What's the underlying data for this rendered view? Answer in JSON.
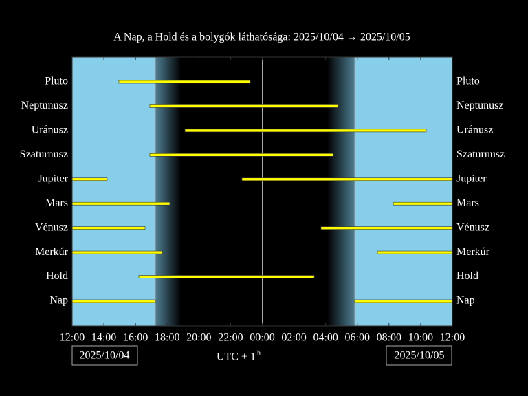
{
  "chart_data": {
    "type": "timeline",
    "title": "A Nap, a Hold és a bolygók láthatósága: 2025/10/04 → 2025/10/05",
    "xlabel": "UTC + 1",
    "xlabel_sup": "h",
    "start_date": "2025/10/04",
    "end_date": "2025/10/05",
    "xlim": [
      12,
      36
    ],
    "xticks": [
      {
        "value": 12,
        "label": "12:00"
      },
      {
        "value": 14,
        "label": "14:00"
      },
      {
        "value": 16,
        "label": "16:00"
      },
      {
        "value": 18,
        "label": "18:00"
      },
      {
        "value": 20,
        "label": "20:00"
      },
      {
        "value": 22,
        "label": "22:00"
      },
      {
        "value": 24,
        "label": "00:00"
      },
      {
        "value": 26,
        "label": "02:00"
      },
      {
        "value": 28,
        "label": "04:00"
      },
      {
        "value": 30,
        "label": "06:00"
      },
      {
        "value": 32,
        "label": "08:00"
      },
      {
        "value": 34,
        "label": "10:00"
      },
      {
        "value": 36,
        "label": "12:00"
      }
    ],
    "sunset": 17.25,
    "dusk_end": 18.86,
    "dawn_start": 28.1,
    "sunrise": 29.84,
    "midnight": 24,
    "day_color": "#87ceeb",
    "bar_color": "#ffff00",
    "series": [
      {
        "name": "Pluto",
        "segments": [
          [
            14.95,
            23.24
          ]
        ]
      },
      {
        "name": "Neptunusz",
        "segments": [
          [
            16.9,
            28.8
          ]
        ]
      },
      {
        "name": "Uránusz",
        "segments": [
          [
            19.12,
            34.35
          ]
        ]
      },
      {
        "name": "Szaturnusz",
        "segments": [
          [
            16.9,
            28.49
          ]
        ]
      },
      {
        "name": "Jupiter",
        "segments": [
          [
            12,
            14.21
          ],
          [
            22.72,
            36
          ]
        ]
      },
      {
        "name": "Mars",
        "segments": [
          [
            12,
            18.16
          ],
          [
            32.27,
            36
          ]
        ]
      },
      {
        "name": "Vénusz",
        "segments": [
          [
            12,
            16.6
          ],
          [
            27.71,
            36
          ]
        ]
      },
      {
        "name": "Merkúr",
        "segments": [
          [
            12,
            17.69
          ],
          [
            31.27,
            36
          ]
        ]
      },
      {
        "name": "Hold",
        "segments": [
          [
            16.21,
            27.28
          ]
        ]
      },
      {
        "name": "Nap",
        "segments": [
          [
            12,
            17.25
          ],
          [
            29.84,
            36
          ]
        ]
      }
    ]
  }
}
